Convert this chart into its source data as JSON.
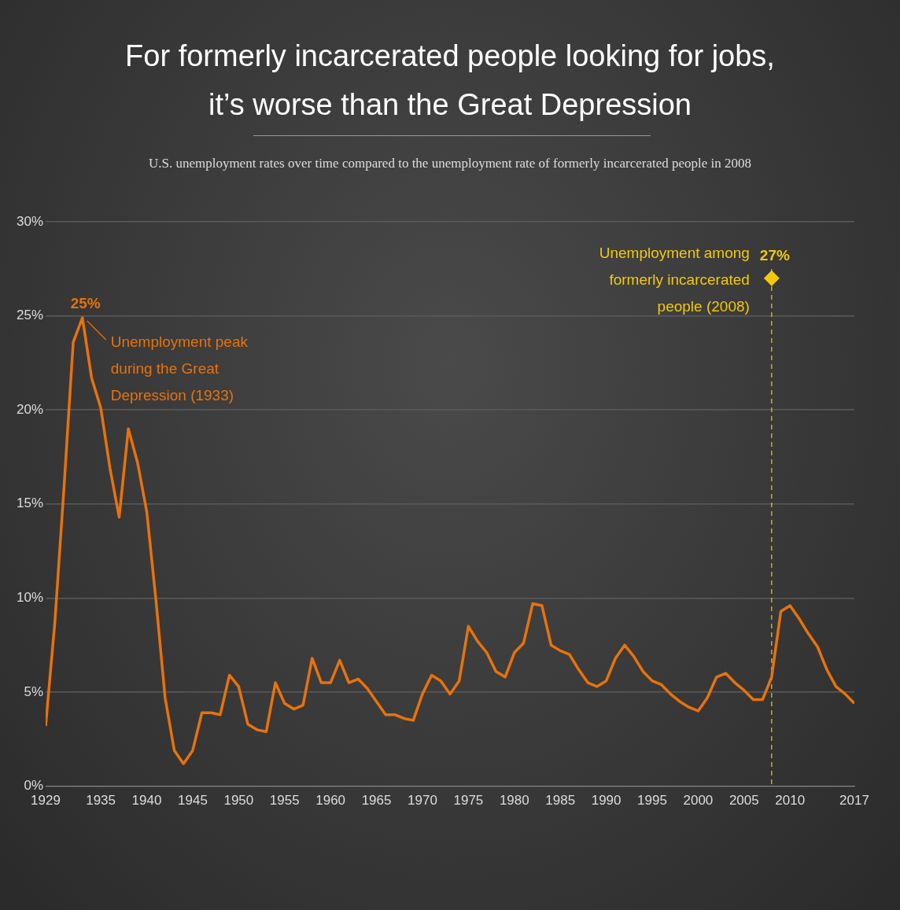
{
  "chart_data": {
    "type": "line",
    "title": "For formerly incarcerated people looking for jobs,\nit’s worse than the Great Depression",
    "subtitle": "U.S. unemployment rates over time compared to the unemployment rate of formerly incarcerated people in 2008",
    "x": [
      1929,
      1930,
      1931,
      1932,
      1933,
      1934,
      1935,
      1936,
      1937,
      1938,
      1939,
      1940,
      1941,
      1942,
      1943,
      1944,
      1945,
      1946,
      1947,
      1948,
      1949,
      1950,
      1951,
      1952,
      1953,
      1954,
      1955,
      1956,
      1957,
      1958,
      1959,
      1960,
      1961,
      1962,
      1963,
      1964,
      1965,
      1966,
      1967,
      1968,
      1969,
      1970,
      1971,
      1972,
      1973,
      1974,
      1975,
      1976,
      1977,
      1978,
      1979,
      1980,
      1981,
      1982,
      1983,
      1984,
      1985,
      1986,
      1987,
      1988,
      1989,
      1990,
      1991,
      1992,
      1993,
      1994,
      1995,
      1996,
      1997,
      1998,
      1999,
      2000,
      2001,
      2002,
      2003,
      2004,
      2005,
      2006,
      2007,
      2008,
      2009,
      2010,
      2011,
      2012,
      2013,
      2014,
      2015,
      2016,
      2017
    ],
    "series": [
      {
        "color": "#e8720c",
        "values": [
          3.2,
          8.7,
          15.9,
          23.6,
          24.9,
          21.7,
          20.1,
          16.9,
          14.3,
          19.0,
          17.2,
          14.6,
          9.9,
          4.7,
          1.9,
          1.2,
          1.9,
          3.9,
          3.9,
          3.8,
          5.9,
          5.3,
          3.3,
          3.0,
          2.9,
          5.5,
          4.4,
          4.1,
          4.3,
          6.8,
          5.5,
          5.5,
          6.7,
          5.5,
          5.7,
          5.2,
          4.5,
          3.8,
          3.8,
          3.6,
          3.5,
          4.9,
          5.9,
          5.6,
          4.9,
          5.6,
          8.5,
          7.7,
          7.1,
          6.1,
          5.8,
          7.1,
          7.6,
          9.7,
          9.6,
          7.5,
          7.2,
          7.0,
          6.2,
          5.5,
          5.3,
          5.6,
          6.8,
          7.5,
          6.9,
          6.1,
          5.6,
          5.4,
          4.9,
          4.5,
          4.2,
          4.0,
          4.7,
          5.8,
          6.0,
          5.5,
          5.1,
          4.6,
          4.6,
          5.8,
          9.3,
          9.6,
          8.9,
          8.1,
          7.4,
          6.2,
          5.3,
          4.9,
          4.4
        ],
        "value_labels": [
          null,
          null,
          null,
          null,
          "25%",
          null,
          null,
          null,
          null,
          null,
          null,
          null,
          null,
          null,
          null,
          null,
          null,
          null,
          null,
          null,
          null,
          null,
          null,
          null,
          null,
          null,
          null,
          null,
          null,
          null,
          null,
          null,
          null,
          null,
          null,
          null,
          null,
          null,
          null,
          null,
          null,
          null,
          null,
          null,
          null,
          null,
          null,
          null,
          null,
          null,
          null,
          null,
          null,
          null,
          null,
          null,
          null,
          null,
          null,
          null,
          null,
          null,
          null,
          null,
          null,
          null,
          null,
          null,
          null,
          null,
          null,
          null,
          null,
          null,
          null,
          null,
          null,
          null,
          null,
          null,
          null,
          null,
          null,
          null,
          null,
          null,
          null,
          null,
          null
        ]
      },
      {
        "type": "scatter",
        "name": "Unemployment among formerly incarcerated people (2008)",
        "color": "#f2c80f",
        "marker": "diamond",
        "x": [
          2008
        ],
        "values": [
          27
        ],
        "value_labels": [
          "27%"
        ]
      }
    ],
    "xlim": [
      1929,
      2017
    ],
    "xticks": [
      1929,
      1935,
      1940,
      1945,
      1950,
      1955,
      1960,
      1965,
      1970,
      1975,
      1980,
      1985,
      1990,
      1995,
      2000,
      2005,
      2010,
      2017
    ],
    "ylim": [
      0,
      30
    ],
    "yticks": [
      {
        "value": 0,
        "label": "0%"
      },
      {
        "value": 5,
        "label": "5%"
      },
      {
        "value": 10,
        "label": "10%"
      },
      {
        "value": 15,
        "label": "15%"
      },
      {
        "value": 20,
        "label": "20%"
      },
      {
        "value": 25,
        "label": "25%"
      },
      {
        "value": 30,
        "label": "30%"
      }
    ],
    "ref_lines": [
      {
        "axis": "x",
        "value": 2008,
        "color": "#f2c80f",
        "line_style": "dashed"
      }
    ],
    "annotations": [
      {
        "text": "Unemployment peak during the Great Depression (1933)",
        "x": 1933,
        "y": 24.9
      }
    ],
    "grid": "y",
    "legend": false,
    "marker": "none",
    "line_style": "solid"
  }
}
